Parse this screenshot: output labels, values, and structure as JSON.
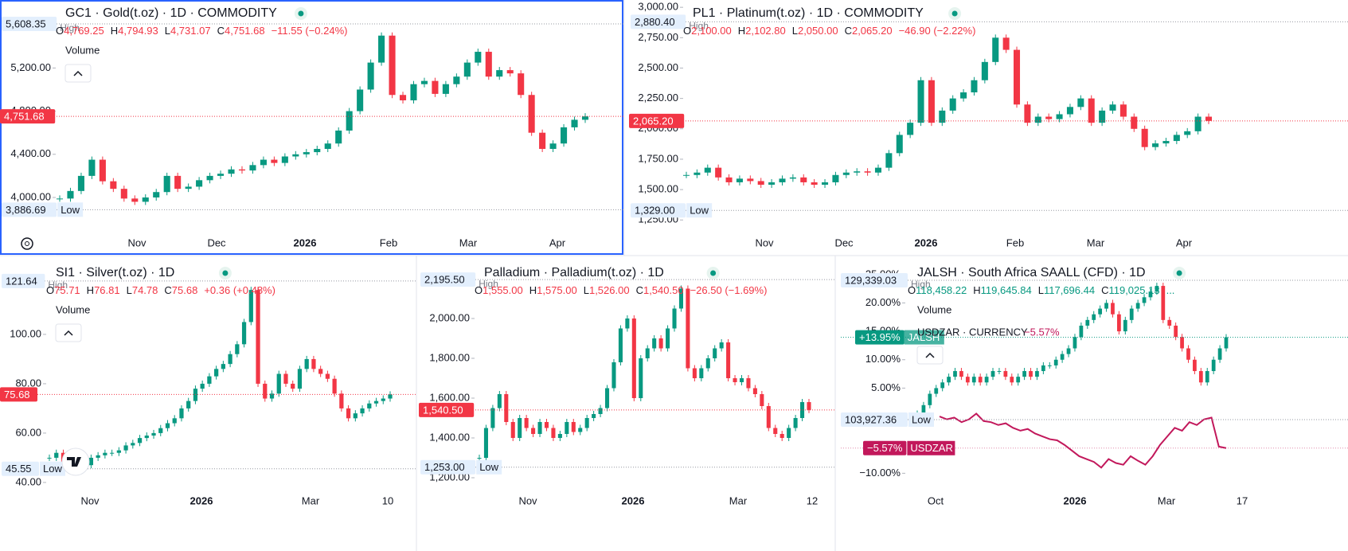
{
  "chart_data": [
    {
      "type": "candlestick",
      "title": "GC1 · Gold(t.oz) · 1D · COMMODITY",
      "ohlc": [
        {
          "k": "O",
          "v": "4,769.25"
        },
        {
          "k": "H",
          "v": "4,794.93"
        },
        {
          "k": "L",
          "v": "4,731.07"
        },
        {
          "k": "C",
          "v": "4,751.68"
        }
      ],
      "change": "−11.55 (−0.24%)",
      "header_color": "#f23645",
      "volume": "Volume",
      "ylim": [
        3690,
        5830
      ],
      "yticks": [
        {
          "value": 4000,
          "label": "4,000.00"
        },
        {
          "value": 4400,
          "label": "4,400.00"
        },
        {
          "value": 4800,
          "label": "4,800.00"
        },
        {
          "value": 5200,
          "label": "5,200.00"
        }
      ],
      "xlabels": [
        "Nov",
        "Dec",
        "2026",
        "Feb",
        "Mar",
        "Apr"
      ],
      "high": {
        "value": 5608.35,
        "label": "5,608.35"
      },
      "high_text": "High",
      "low": {
        "value": 3886.69,
        "label": "3,886.69"
      },
      "low_text": "Low",
      "last": {
        "value": 4751.68,
        "label": "4,751.68"
      },
      "last_color": "#f23645",
      "up_color": "#089981",
      "down_color": "#f23645",
      "values": [
        3990,
        4060,
        4200,
        4350,
        4150,
        4080,
        3990,
        3960,
        4000,
        4050,
        4200,
        4080,
        4100,
        4160,
        4200,
        4220,
        4260,
        4250,
        4300,
        4350,
        4320,
        4380,
        4400,
        4420,
        4450,
        4500,
        4620,
        4800,
        5000,
        5250,
        5500,
        4950,
        4900,
        5050,
        5080,
        4960,
        5050,
        5120,
        5250,
        5350,
        5120,
        5180,
        5150,
        4950,
        4600,
        4450,
        4500,
        4650,
        4720,
        4751.68
      ]
    },
    {
      "type": "candlestick",
      "title": "PL1 · Platinum(t.oz) · 1D · COMMODITY",
      "ohlc": [
        {
          "k": "O",
          "v": "2,100.00"
        },
        {
          "k": "H",
          "v": "2,102.80"
        },
        {
          "k": "L",
          "v": "2,050.00"
        },
        {
          "k": "C",
          "v": "2,065.20"
        }
      ],
      "change": "−46.90 (−2.22%)",
      "header_color": "#f23645",
      "ylim": [
        1160,
        3060
      ],
      "yticks": [
        {
          "value": 1250,
          "label": "1,250.00"
        },
        {
          "value": 1500,
          "label": "1,500.00"
        },
        {
          "value": 1750,
          "label": "1,750.00"
        },
        {
          "value": 2000,
          "label": "2,000.00"
        },
        {
          "value": 2250,
          "label": "2,250.00"
        },
        {
          "value": 2500,
          "label": "2,500.00"
        },
        {
          "value": 2750,
          "label": "2,750.00"
        },
        {
          "value": 3000,
          "label": "3,000.00"
        }
      ],
      "xlabels": [
        "Nov",
        "Dec",
        "2026",
        "Feb",
        "Mar",
        "Apr"
      ],
      "high": {
        "value": 2880.4,
        "label": "2,880.40"
      },
      "high_text": "High",
      "low": {
        "value": 1329,
        "label": "1,329.00"
      },
      "low_text": "Low",
      "last": {
        "value": 2065.2,
        "label": "2,065.20"
      },
      "last_color": "#f23645",
      "up_color": "#089981",
      "down_color": "#f23645",
      "values": [
        1620,
        1640,
        1680,
        1600,
        1560,
        1590,
        1570,
        1540,
        1560,
        1590,
        1600,
        1560,
        1540,
        1560,
        1620,
        1640,
        1650,
        1640,
        1680,
        1800,
        1950,
        2050,
        2400,
        2050,
        2150,
        2250,
        2300,
        2400,
        2550,
        2750,
        2650,
        2200,
        2050,
        2100,
        2080,
        2120,
        2180,
        2250,
        2050,
        2150,
        2200,
        2100,
        2000,
        1850,
        1880,
        1900,
        1950,
        1980,
        2100,
        2065.2
      ]
    },
    {
      "type": "candlestick",
      "title": "SI1 · Silver(t.oz) · 1D",
      "ohlc": [
        {
          "k": "O",
          "v": "75.71"
        },
        {
          "k": "H",
          "v": "76.81"
        },
        {
          "k": "L",
          "v": "74.78"
        },
        {
          "k": "C",
          "v": "75.68"
        }
      ],
      "change": "+0.36 (+0.48%)",
      "header_color": "#f23645",
      "volume": "Volume",
      "ylim": [
        29,
        131.6
      ],
      "yticks": [
        {
          "value": 40,
          "label": "40.00"
        },
        {
          "value": 60,
          "label": "60.00"
        },
        {
          "value": 80,
          "label": "80.00"
        },
        {
          "value": 100,
          "label": "100.00"
        }
      ],
      "xlabels": [
        "Nov",
        "2026",
        "Mar",
        "10"
      ],
      "high": {
        "value": 121.64,
        "label": "121.64"
      },
      "high_text": "High",
      "low": {
        "value": 45.55,
        "label": "45.55"
      },
      "low_text": "Low",
      "last": {
        "value": 75.68,
        "label": "75.68"
      },
      "last_color": "#f23645",
      "up_color": "#089981",
      "down_color": "#f23645",
      "values": [
        50,
        52,
        48,
        47,
        48,
        47,
        50,
        51,
        52,
        52,
        53,
        55,
        56,
        58,
        59,
        60,
        62,
        64,
        66,
        70,
        73,
        78,
        80,
        83,
        86,
        88,
        92,
        96,
        105,
        118,
        80,
        74,
        76,
        84,
        80,
        78,
        86,
        90,
        86,
        84,
        82,
        76,
        70,
        66,
        68,
        70,
        72,
        73,
        74,
        75.68
      ]
    },
    {
      "type": "candlestick",
      "title": "Palladium · Palladium(t.oz) · 1D",
      "ohlc": [
        {
          "k": "O",
          "v": "1,555.00"
        },
        {
          "k": "H",
          "v": "1,575.00"
        },
        {
          "k": "L",
          "v": "1,526.00"
        },
        {
          "k": "C",
          "v": "1,540.50"
        }
      ],
      "change": "−26.50 (−1.69%)",
      "header_color": "#f23645",
      "ylim": [
        1040,
        2312
      ],
      "yticks": [
        {
          "value": 1200,
          "label": "1,200.00"
        },
        {
          "value": 1400,
          "label": "1,400.00"
        },
        {
          "value": 1600,
          "label": "1,600.00"
        },
        {
          "value": 1800,
          "label": "1,800.00"
        },
        {
          "value": 2000,
          "label": "2,000.00"
        }
      ],
      "xlabels": [
        "Nov",
        "2026",
        "Mar",
        "12"
      ],
      "high": {
        "value": 2195.5,
        "label": "2,195.50"
      },
      "high_text": "High",
      "low": {
        "value": 1253,
        "label": "1,253.00"
      },
      "low_text": "Low",
      "last": {
        "value": 1540.5,
        "label": "1,540.50"
      },
      "last_color": "#f23645",
      "up_color": "#089981",
      "down_color": "#f23645",
      "values": [
        1300,
        1450,
        1550,
        1620,
        1480,
        1400,
        1500,
        1450,
        1420,
        1480,
        1450,
        1400,
        1420,
        1480,
        1430,
        1450,
        1500,
        1520,
        1550,
        1650,
        1780,
        1950,
        2000,
        1600,
        1800,
        1850,
        1900,
        1850,
        1950,
        2050,
        2150,
        1750,
        1700,
        1750,
        1800,
        1850,
        1880,
        1700,
        1680,
        1700,
        1650,
        1620,
        1560,
        1450,
        1420,
        1400,
        1450,
        1500,
        1580,
        1540.5
      ]
    },
    {
      "type": "candlestick",
      "title": "JALSH · South Africa SAALL (CFD) · 1D",
      "ohlc": [
        {
          "k": "O",
          "v": "118,458.22"
        },
        {
          "k": "H",
          "v": "119,645.84"
        },
        {
          "k": "L",
          "v": "117,696.44"
        },
        {
          "k": "C",
          "v": "119,025.13"
        }
      ],
      "change": "...",
      "header_color": "#089981",
      "volume": "Volume",
      "ylim": [
        -16.4,
        28.2
      ],
      "yticks": [
        {
          "value": -10,
          "label": "−10.00%"
        },
        {
          "value": 5,
          "label": "5.00%"
        },
        {
          "value": 10,
          "label": "10.00%"
        },
        {
          "value": 15,
          "label": "15.00%"
        },
        {
          "value": 20,
          "label": "20.00%"
        },
        {
          "value": 25,
          "label": "25.00%"
        }
      ],
      "xlabels": [
        "Oct",
        "2026",
        "Mar",
        "17"
      ],
      "high": "129,339.03",
      "high_text": "High",
      "low": "103,927.36",
      "low_text": "Low",
      "last": {
        "value": 13.95,
        "label": "+13.95%"
      },
      "last_name": "JALSH",
      "last_color": "#089981",
      "up_color": "#089981",
      "down_color": "#f23645",
      "values": [
        0.5,
        2,
        4,
        5,
        6,
        7,
        8,
        7,
        6,
        7,
        6,
        7,
        8,
        8,
        7,
        6,
        7,
        8,
        7,
        8,
        9,
        9,
        10,
        11,
        12,
        14,
        16,
        17,
        18,
        19,
        20,
        18,
        15,
        17,
        19,
        20,
        21,
        22,
        23,
        17,
        16,
        14,
        12,
        10,
        8,
        6,
        8,
        10,
        12,
        13.95
      ],
      "overlay": {
        "name": "USDZAR · CURRENCY",
        "change": "−5.57%",
        "color": "#c2185b",
        "last": {
          "value": -5.57,
          "label": "−5.57%"
        },
        "last_name": "USDZAR",
        "values": [
          0,
          -0.5,
          -0.2,
          -1,
          -0.5,
          0.5,
          -0.8,
          -1,
          -1.5,
          -1.2,
          -2,
          -2.5,
          -2.2,
          -3,
          -3.5,
          -4,
          -4.2,
          -5,
          -6,
          -7,
          -7.5,
          -8,
          -9,
          -7.5,
          -8.2,
          -8.5,
          -7,
          -7.8,
          -8.5,
          -7,
          -5,
          -3.5,
          -2,
          -2.5,
          -1,
          -1.5,
          -0.5,
          -0.2,
          -5.3,
          -5.57
        ]
      }
    }
  ]
}
